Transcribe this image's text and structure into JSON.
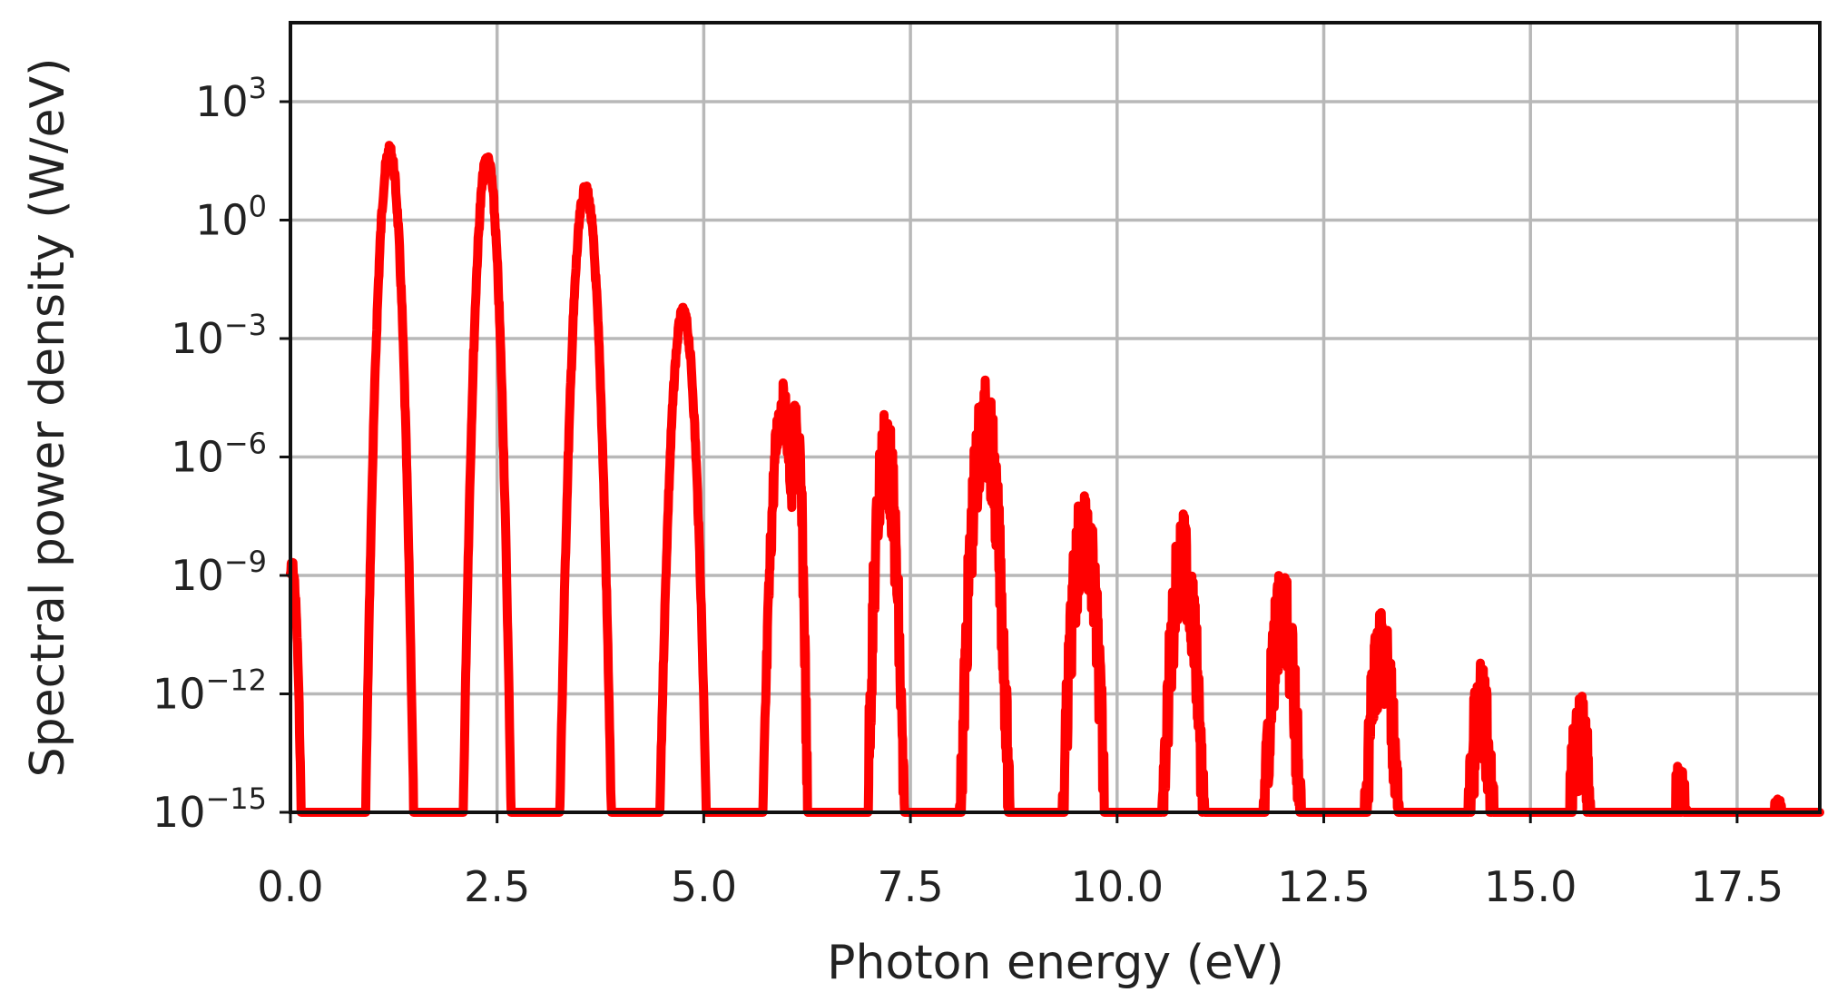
{
  "chart_data": {
    "type": "line",
    "title": "",
    "xlabel": "Photon energy (eV)",
    "ylabel": "Spectral power density (W/eV)",
    "xlim": [
      0.0,
      18.5
    ],
    "ylim_log10": [
      -15,
      5
    ],
    "yscale": "log",
    "grid": true,
    "legend": "none",
    "x_ticks": [
      {
        "value": 0.0,
        "label": "0.0"
      },
      {
        "value": 2.5,
        "label": "2.5"
      },
      {
        "value": 5.0,
        "label": "5.0"
      },
      {
        "value": 7.5,
        "label": "7.5"
      },
      {
        "value": 10.0,
        "label": "10.0"
      },
      {
        "value": 12.5,
        "label": "12.5"
      },
      {
        "value": 15.0,
        "label": "15.0"
      },
      {
        "value": 17.5,
        "label": "17.5"
      }
    ],
    "y_ticks": [
      {
        "exponent": -15,
        "base": "10",
        "sup": "−15"
      },
      {
        "exponent": -12,
        "base": "10",
        "sup": "−12"
      },
      {
        "exponent": -9,
        "base": "10",
        "sup": "−9"
      },
      {
        "exponent": -6,
        "base": "10",
        "sup": "−6"
      },
      {
        "exponent": -3,
        "base": "10",
        "sup": "−3"
      },
      {
        "exponent": 0,
        "base": "10",
        "sup": "0"
      },
      {
        "exponent": 3,
        "base": "10",
        "sup": "3"
      }
    ],
    "series": [
      {
        "color": "#ff0000",
        "harmonic_peaks": [
          {
            "x": 0.02,
            "log10_y": -8.6,
            "width": 0.12
          },
          {
            "x": 1.2,
            "log10_y": 1.9,
            "width": 0.2
          },
          {
            "x": 2.38,
            "log10_y": 1.7,
            "width": 0.2
          },
          {
            "x": 3.57,
            "log10_y": 0.9,
            "width": 0.22
          },
          {
            "x": 4.75,
            "log10_y": -2.2,
            "width": 0.22
          },
          {
            "x": 5.95,
            "log10_y": -4.1,
            "width": 0.2
          },
          {
            "x": 6.12,
            "log10_y": -4.5,
            "width": 0.12
          },
          {
            "x": 7.2,
            "log10_y": -4.6,
            "width": 0.2
          },
          {
            "x": 8.4,
            "log10_y": -4.0,
            "width": 0.26
          },
          {
            "x": 9.6,
            "log10_y": -6.7,
            "width": 0.26
          },
          {
            "x": 10.8,
            "log10_y": -7.4,
            "width": 0.26
          },
          {
            "x": 12.0,
            "log10_y": -8.8,
            "width": 0.26
          },
          {
            "x": 13.2,
            "log10_y": -9.6,
            "width": 0.26
          },
          {
            "x": 14.4,
            "log10_y": -11.2,
            "width": 0.24
          },
          {
            "x": 15.6,
            "log10_y": -11.9,
            "width": 0.24
          },
          {
            "x": 16.8,
            "log10_y": -13.5,
            "width": 0.22
          },
          {
            "x": 18.0,
            "log10_y": -14.4,
            "width": 0.2
          }
        ]
      }
    ]
  }
}
